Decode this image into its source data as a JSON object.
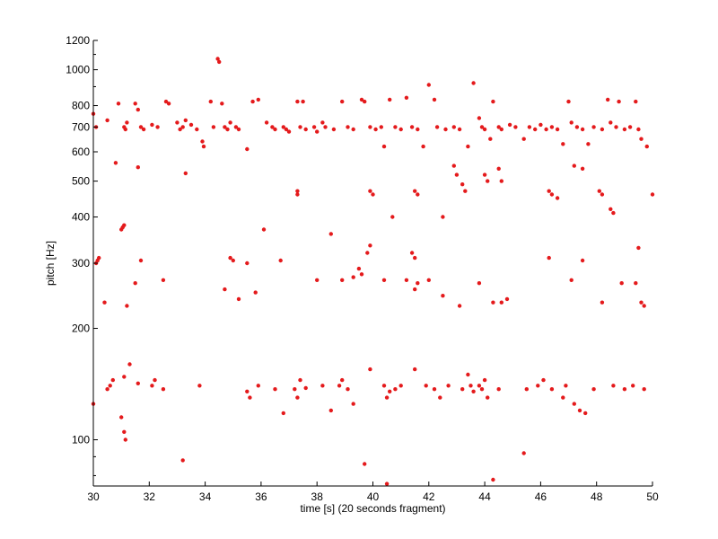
{
  "chart_data": {
    "type": "scatter",
    "title": "",
    "xlabel": "time [s] (20 seconds fragment)",
    "ylabel": "pitch [Hz]",
    "xlim": [
      30,
      50
    ],
    "ylim": [
      75,
      1200
    ],
    "y_scale": "log",
    "grid": false,
    "legend": "none",
    "marker_color": "#e41a1c",
    "x_ticks": [
      30,
      32,
      34,
      36,
      38,
      40,
      42,
      44,
      46,
      48,
      50
    ],
    "x_tick_labels": [
      "30",
      "32",
      "34",
      "36",
      "38",
      "40",
      "42",
      "44",
      "46",
      "48",
      "50"
    ],
    "y_ticks": [
      100,
      200,
      300,
      400,
      500,
      600,
      700,
      800,
      1000,
      1200
    ],
    "y_tick_labels": [
      "100",
      "200",
      "300",
      "400",
      "500",
      "600",
      "700",
      "800",
      "1000",
      "1200"
    ],
    "y_minor_ticks": [
      80,
      90,
      900,
      1100
    ],
    "series": [
      {
        "points": [
          [
            30.0,
            760
          ],
          [
            30.1,
            700
          ],
          [
            30.5,
            730
          ],
          [
            30.9,
            810
          ],
          [
            31.1,
            700
          ],
          [
            31.15,
            690
          ],
          [
            31.2,
            720
          ],
          [
            31.5,
            810
          ],
          [
            31.6,
            780
          ],
          [
            31.7,
            700
          ],
          [
            31.8,
            690
          ],
          [
            32.1,
            710
          ],
          [
            32.3,
            700
          ],
          [
            32.6,
            820
          ],
          [
            32.7,
            810
          ],
          [
            33.0,
            720
          ],
          [
            33.1,
            690
          ],
          [
            33.2,
            700
          ],
          [
            33.3,
            730
          ],
          [
            33.5,
            710
          ],
          [
            33.7,
            690
          ],
          [
            33.9,
            640
          ],
          [
            33.95,
            620
          ],
          [
            34.2,
            820
          ],
          [
            34.3,
            700
          ],
          [
            34.45,
            1070
          ],
          [
            34.5,
            1050
          ],
          [
            34.6,
            810
          ],
          [
            34.7,
            700
          ],
          [
            34.8,
            690
          ],
          [
            34.9,
            720
          ],
          [
            35.1,
            700
          ],
          [
            35.2,
            690
          ],
          [
            35.5,
            610
          ],
          [
            35.7,
            820
          ],
          [
            35.9,
            830
          ],
          [
            36.2,
            720
          ],
          [
            36.4,
            700
          ],
          [
            36.5,
            690
          ],
          [
            36.8,
            700
          ],
          [
            36.9,
            690
          ],
          [
            37.0,
            680
          ],
          [
            37.3,
            820
          ],
          [
            37.4,
            700
          ],
          [
            37.5,
            820
          ],
          [
            37.6,
            690
          ],
          [
            37.9,
            700
          ],
          [
            38.0,
            680
          ],
          [
            38.2,
            720
          ],
          [
            38.3,
            700
          ],
          [
            38.6,
            690
          ],
          [
            38.9,
            820
          ],
          [
            39.1,
            700
          ],
          [
            39.3,
            690
          ],
          [
            39.6,
            830
          ],
          [
            39.7,
            820
          ],
          [
            39.9,
            700
          ],
          [
            40.1,
            690
          ],
          [
            40.3,
            700
          ],
          [
            40.4,
            620
          ],
          [
            40.6,
            830
          ],
          [
            40.8,
            700
          ],
          [
            41.0,
            690
          ],
          [
            41.2,
            840
          ],
          [
            41.4,
            700
          ],
          [
            41.6,
            690
          ],
          [
            41.8,
            620
          ],
          [
            42.0,
            910
          ],
          [
            42.2,
            830
          ],
          [
            42.3,
            700
          ],
          [
            42.6,
            690
          ],
          [
            42.9,
            700
          ],
          [
            43.1,
            690
          ],
          [
            43.4,
            620
          ],
          [
            43.6,
            920
          ],
          [
            43.8,
            740
          ],
          [
            43.9,
            700
          ],
          [
            44.0,
            690
          ],
          [
            44.2,
            650
          ],
          [
            44.3,
            820
          ],
          [
            44.5,
            700
          ],
          [
            44.6,
            690
          ],
          [
            44.9,
            710
          ],
          [
            45.1,
            700
          ],
          [
            45.4,
            650
          ],
          [
            45.6,
            700
          ],
          [
            45.8,
            690
          ],
          [
            46.0,
            710
          ],
          [
            46.2,
            690
          ],
          [
            46.4,
            700
          ],
          [
            46.6,
            690
          ],
          [
            46.8,
            630
          ],
          [
            47.0,
            820
          ],
          [
            47.1,
            720
          ],
          [
            47.3,
            700
          ],
          [
            47.5,
            690
          ],
          [
            47.7,
            630
          ],
          [
            47.9,
            700
          ],
          [
            48.2,
            690
          ],
          [
            48.4,
            830
          ],
          [
            48.5,
            720
          ],
          [
            48.7,
            700
          ],
          [
            48.8,
            820
          ],
          [
            49.0,
            690
          ],
          [
            49.2,
            700
          ],
          [
            49.4,
            820
          ],
          [
            49.5,
            690
          ],
          [
            49.6,
            650
          ],
          [
            49.8,
            620
          ]
        ]
      },
      {
        "points": [
          [
            30.8,
            560
          ],
          [
            31.6,
            545
          ],
          [
            33.3,
            525
          ],
          [
            36.1,
            370
          ],
          [
            37.3,
            470
          ],
          [
            37.3,
            460
          ],
          [
            38.5,
            360
          ],
          [
            39.9,
            470
          ],
          [
            40.0,
            460
          ],
          [
            40.7,
            400
          ],
          [
            41.5,
            470
          ],
          [
            41.6,
            460
          ],
          [
            42.5,
            400
          ],
          [
            42.9,
            550
          ],
          [
            43.0,
            520
          ],
          [
            43.2,
            490
          ],
          [
            43.3,
            470
          ],
          [
            44.0,
            520
          ],
          [
            44.1,
            500
          ],
          [
            44.5,
            540
          ],
          [
            44.6,
            500
          ],
          [
            46.3,
            470
          ],
          [
            46.4,
            460
          ],
          [
            46.6,
            450
          ],
          [
            47.2,
            550
          ],
          [
            47.5,
            540
          ],
          [
            48.1,
            470
          ],
          [
            48.2,
            460
          ],
          [
            48.5,
            420
          ],
          [
            48.6,
            410
          ],
          [
            50.0,
            460
          ],
          [
            31.0,
            370
          ],
          [
            31.05,
            375
          ],
          [
            31.1,
            380
          ],
          [
            30.1,
            300
          ],
          [
            30.15,
            305
          ],
          [
            30.2,
            310
          ]
        ]
      },
      {
        "points": [
          [
            30.4,
            235
          ],
          [
            31.2,
            230
          ],
          [
            31.5,
            265
          ],
          [
            31.7,
            305
          ],
          [
            32.5,
            270
          ],
          [
            34.7,
            255
          ],
          [
            34.9,
            310
          ],
          [
            35.0,
            305
          ],
          [
            35.2,
            240
          ],
          [
            35.5,
            300
          ],
          [
            35.8,
            250
          ],
          [
            36.7,
            305
          ],
          [
            38.0,
            270
          ],
          [
            38.9,
            270
          ],
          [
            39.3,
            275
          ],
          [
            39.5,
            290
          ],
          [
            39.6,
            280
          ],
          [
            39.8,
            320
          ],
          [
            39.9,
            335
          ],
          [
            40.4,
            270
          ],
          [
            41.2,
            270
          ],
          [
            41.4,
            320
          ],
          [
            41.5,
            310
          ],
          [
            41.5,
            255
          ],
          [
            41.6,
            265
          ],
          [
            42.0,
            270
          ],
          [
            42.5,
            245
          ],
          [
            43.1,
            230
          ],
          [
            43.8,
            265
          ],
          [
            44.3,
            235
          ],
          [
            44.6,
            235
          ],
          [
            44.8,
            240
          ],
          [
            46.3,
            310
          ],
          [
            47.1,
            270
          ],
          [
            47.5,
            305
          ],
          [
            48.2,
            235
          ],
          [
            48.9,
            265
          ],
          [
            49.4,
            265
          ],
          [
            49.5,
            330
          ],
          [
            49.6,
            235
          ],
          [
            49.7,
            230
          ]
        ]
      },
      {
        "points": [
          [
            30.0,
            125
          ],
          [
            30.5,
            137
          ],
          [
            30.6,
            140
          ],
          [
            30.7,
            145
          ],
          [
            31.0,
            115
          ],
          [
            31.1,
            105
          ],
          [
            31.15,
            100
          ],
          [
            31.1,
            148
          ],
          [
            31.3,
            160
          ],
          [
            31.6,
            142
          ],
          [
            32.1,
            140
          ],
          [
            32.2,
            145
          ],
          [
            32.5,
            137
          ],
          [
            33.8,
            140
          ],
          [
            35.5,
            135
          ],
          [
            35.6,
            130
          ],
          [
            35.9,
            140
          ],
          [
            36.5,
            137
          ],
          [
            36.8,
            118
          ],
          [
            37.2,
            137
          ],
          [
            37.3,
            130
          ],
          [
            37.4,
            145
          ],
          [
            37.6,
            138
          ],
          [
            38.2,
            140
          ],
          [
            38.5,
            120
          ],
          [
            38.8,
            140
          ],
          [
            38.9,
            145
          ],
          [
            39.1,
            137
          ],
          [
            39.3,
            125
          ],
          [
            39.7,
            86
          ],
          [
            39.9,
            155
          ],
          [
            40.4,
            140
          ],
          [
            40.5,
            130
          ],
          [
            40.6,
            135
          ],
          [
            40.8,
            137
          ],
          [
            41.0,
            140
          ],
          [
            41.5,
            155
          ],
          [
            41.9,
            140
          ],
          [
            42.2,
            137
          ],
          [
            42.4,
            130
          ],
          [
            42.7,
            140
          ],
          [
            43.2,
            137
          ],
          [
            43.4,
            150
          ],
          [
            43.5,
            140
          ],
          [
            43.6,
            135
          ],
          [
            43.8,
            140
          ],
          [
            43.9,
            137
          ],
          [
            44.0,
            145
          ],
          [
            44.1,
            130
          ],
          [
            44.3,
            78
          ],
          [
            44.5,
            137
          ],
          [
            45.4,
            92
          ],
          [
            45.5,
            137
          ],
          [
            45.9,
            140
          ],
          [
            46.1,
            145
          ],
          [
            46.4,
            137
          ],
          [
            46.8,
            130
          ],
          [
            46.9,
            140
          ],
          [
            47.2,
            125
          ],
          [
            47.4,
            120
          ],
          [
            47.6,
            118
          ],
          [
            47.9,
            137
          ],
          [
            48.6,
            140
          ],
          [
            49.0,
            137
          ],
          [
            49.3,
            140
          ],
          [
            49.7,
            137
          ],
          [
            40.5,
            76
          ],
          [
            33.2,
            88
          ]
        ]
      }
    ]
  }
}
